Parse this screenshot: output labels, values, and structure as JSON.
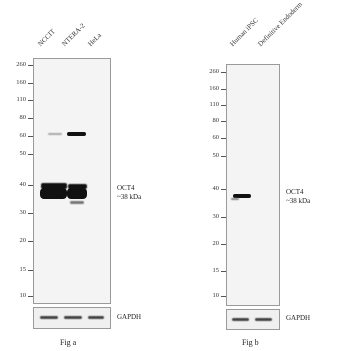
{
  "fig_a": {
    "caption": "Fig a",
    "lanes": [
      "NCCIT",
      "NTERA-2",
      "HeLa"
    ],
    "markers": [
      "260",
      "160",
      "110",
      "80",
      "60",
      "50",
      "40",
      "30",
      "20",
      "15",
      "10"
    ],
    "target_label_line1": "OCT4",
    "target_label_line2": "~38 kDa",
    "loading_control": "GAPDH"
  },
  "fig_b": {
    "caption": "Fig b",
    "lanes": [
      "Human iPSC",
      "Definitive Endoderm"
    ],
    "markers": [
      "260",
      "160",
      "110",
      "80",
      "60",
      "50",
      "40",
      "30",
      "20",
      "15",
      "10"
    ],
    "target_label_line1": "OCT4",
    "target_label_line2": "~38 kDa",
    "loading_control": "GAPDH"
  }
}
